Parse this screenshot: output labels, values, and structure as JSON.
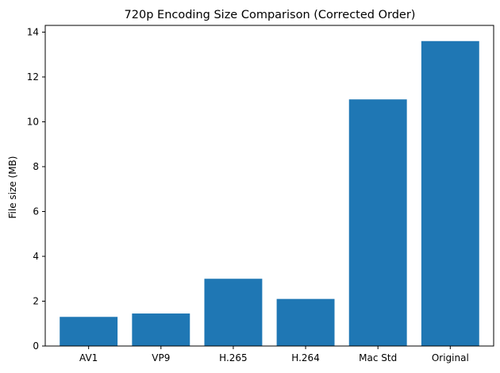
{
  "chart_data": {
    "type": "bar",
    "title": "720p Encoding Size Comparison (Corrected Order)",
    "xlabel": "",
    "ylabel": "File size (MB)",
    "categories": [
      "AV1",
      "VP9",
      "H.265",
      "H.264",
      "Mac Std",
      "Original"
    ],
    "values": [
      1.3,
      1.45,
      3.0,
      2.1,
      11.0,
      13.6
    ],
    "ylim": [
      0,
      14.3
    ],
    "yticks": [
      0,
      2,
      4,
      6,
      8,
      10,
      12,
      14
    ],
    "grid": false,
    "legend": "none",
    "bar_color": "#1f77b4"
  }
}
